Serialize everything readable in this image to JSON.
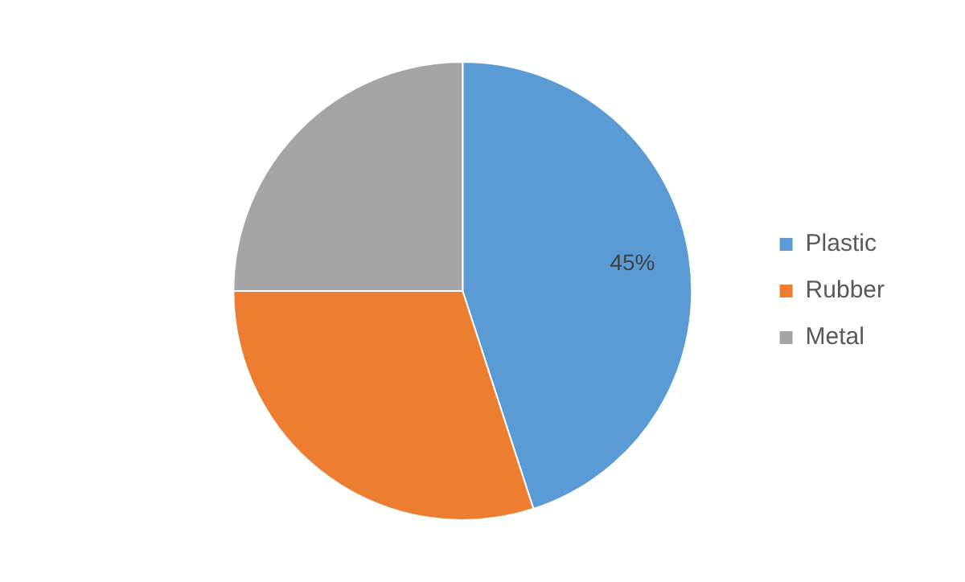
{
  "chart_data": {
    "type": "pie",
    "categories": [
      "Plastic",
      "Rubber",
      "Metal"
    ],
    "values": [
      45,
      30,
      25
    ],
    "colors": [
      "#5b9bd5",
      "#ed7d31",
      "#a5a5a5"
    ],
    "value_labels": [
      "45%",
      null,
      null
    ],
    "legend": "right"
  }
}
